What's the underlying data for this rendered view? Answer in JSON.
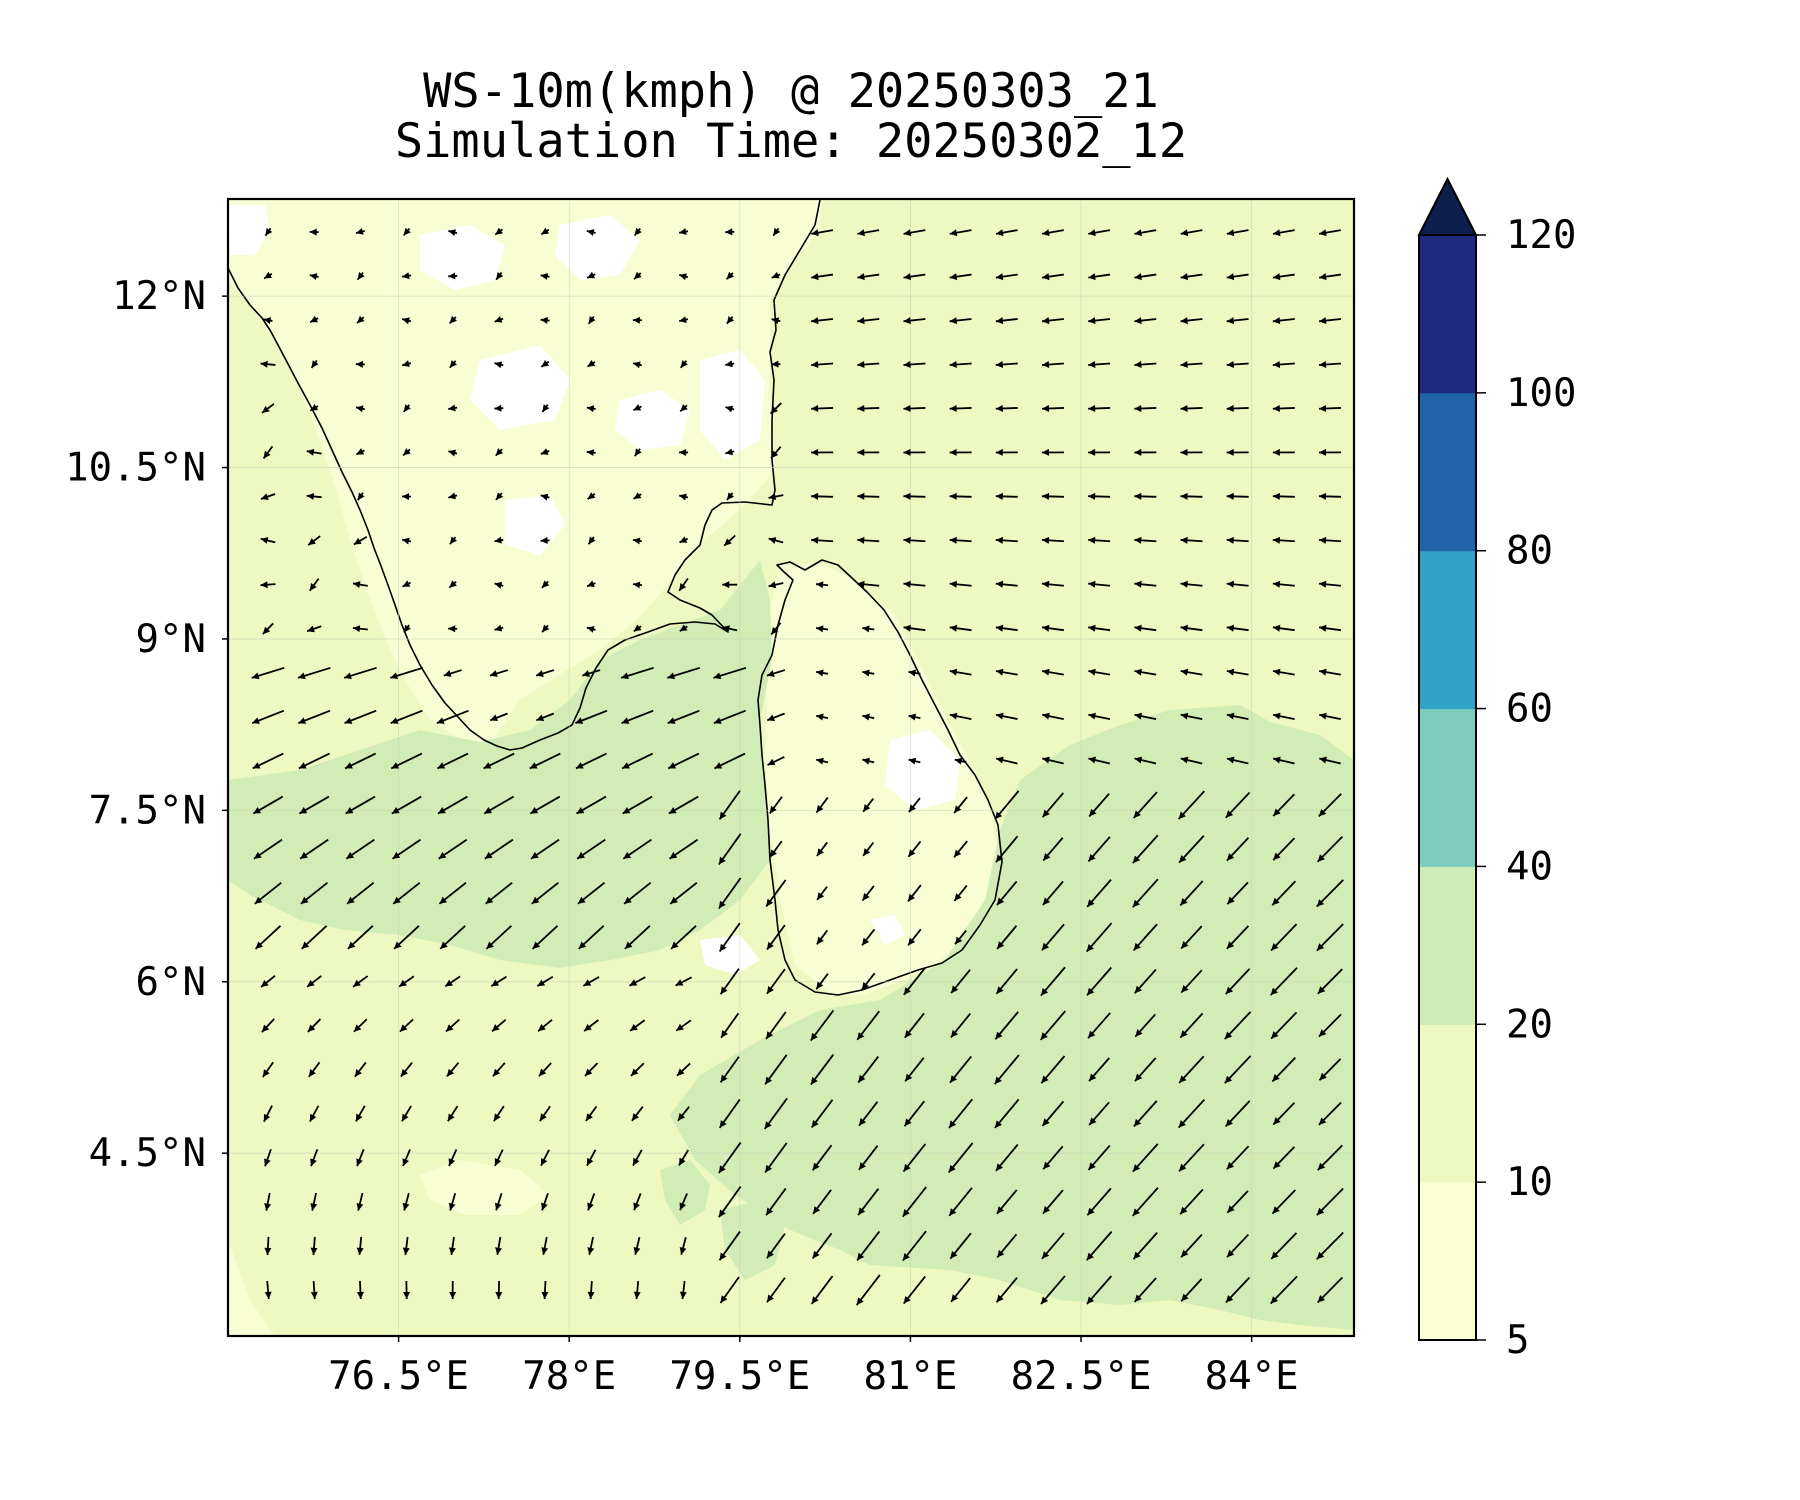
{
  "title": "WS-10m(kmph) @ 20250303_21",
  "subtitle": "Simulation Time: 20250302_12",
  "map": {
    "lon_range": [
      75.0,
      84.9
    ],
    "lat_range": [
      2.9,
      12.85
    ],
    "lon_ticks": [
      {
        "value": 76.5,
        "label": "76.5°E"
      },
      {
        "value": 78.0,
        "label": "78°E"
      },
      {
        "value": 79.5,
        "label": "79.5°E"
      },
      {
        "value": 81.0,
        "label": "81°E"
      },
      {
        "value": 82.5,
        "label": "82.5°E"
      },
      {
        "value": 84.0,
        "label": "84°E"
      }
    ],
    "lat_ticks": [
      {
        "value": 12.0,
        "label": "12°N"
      },
      {
        "value": 10.5,
        "label": "10.5°N"
      },
      {
        "value": 9.0,
        "label": "9°N"
      },
      {
        "value": 7.5,
        "label": "7.5°N"
      },
      {
        "value": 6.0,
        "label": "6°N"
      },
      {
        "value": 4.5,
        "label": "4.5°N"
      }
    ],
    "gridlines": true,
    "vector_field": "wind direction arrows, 10 m",
    "colors": {
      "ocean_bg": "#eef8c1",
      "land_light": "#f9fdd4",
      "strong_wind": "#d1edb5",
      "calm": "#ffffff",
      "coastline": "#000000",
      "arrow": "#000000"
    }
  },
  "colorbar": {
    "levels": [
      5,
      10,
      20,
      40,
      60,
      80,
      100,
      120
    ],
    "tick_labels": [
      "5",
      "10",
      "20",
      "40",
      "60",
      "80",
      "100",
      "120"
    ],
    "colors": [
      "#fbfed2",
      "#eef8c1",
      "#cdebb4",
      "#7ccbbb",
      "#2fa2c5",
      "#2163a9",
      "#1d2c80"
    ],
    "extend_color": "#0c1f4d",
    "extend": "max"
  }
}
